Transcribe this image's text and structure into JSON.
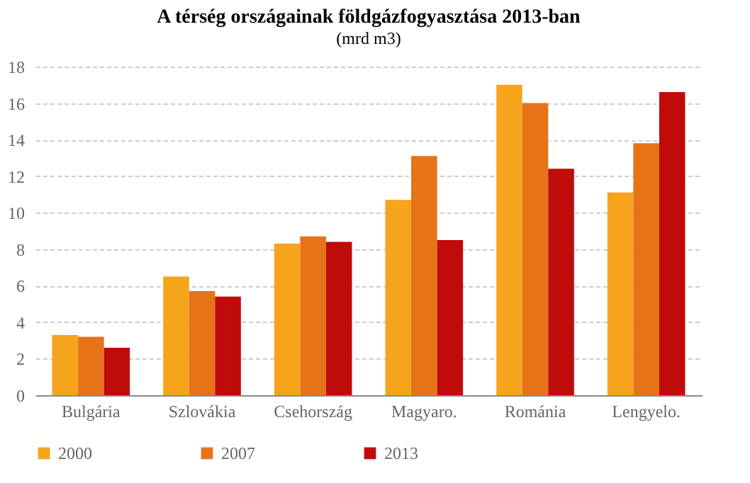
{
  "chart_data": {
    "type": "bar",
    "title": "A térség országainak földgázfogyasztása 2013-ban",
    "subtitle": "(mrd m3)",
    "categories": [
      "Bulgária",
      "Szlovákia",
      "Csehország",
      "Magyaro.",
      "Románia",
      "Lengyelo."
    ],
    "series": [
      {
        "name": "2000",
        "color": "#f7a41d",
        "values": [
          3.3,
          6.5,
          8.3,
          10.7,
          17.0,
          11.1
        ]
      },
      {
        "name": "2007",
        "color": "#e67317",
        "values": [
          3.2,
          5.7,
          8.7,
          13.1,
          16.0,
          13.8
        ]
      },
      {
        "name": "2013",
        "color": "#c00b0b",
        "values": [
          2.6,
          5.4,
          8.4,
          8.5,
          12.4,
          16.6
        ]
      }
    ],
    "ylim": [
      0,
      18
    ],
    "yticks": [
      0,
      2,
      4,
      6,
      8,
      10,
      12,
      14,
      16,
      18
    ],
    "grid": "y",
    "legend": "bottom"
  }
}
